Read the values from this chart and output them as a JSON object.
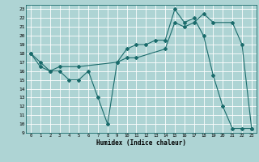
{
  "xlabel": "Humidex (Indice chaleur)",
  "background_color": "#aed4d4",
  "grid_color": "#ffffff",
  "line_color": "#1a6b6b",
  "xlim": [
    -0.5,
    23.5
  ],
  "ylim": [
    9,
    23.5
  ],
  "xticks": [
    0,
    1,
    2,
    3,
    4,
    5,
    6,
    7,
    8,
    9,
    10,
    11,
    12,
    13,
    14,
    15,
    16,
    17,
    18,
    19,
    20,
    21,
    22,
    23
  ],
  "yticks": [
    9,
    10,
    11,
    12,
    13,
    14,
    15,
    16,
    17,
    18,
    19,
    20,
    21,
    22,
    23
  ],
  "line1_x": [
    0,
    1,
    2,
    3,
    4,
    5,
    6,
    7,
    8,
    9,
    10,
    11,
    12,
    13,
    14,
    15,
    16,
    17,
    18,
    19,
    20,
    21,
    22,
    23
  ],
  "line1_y": [
    18,
    17,
    16,
    16,
    15,
    15,
    16,
    13,
    10,
    17,
    18.5,
    19,
    19,
    19.5,
    19.5,
    23,
    21.5,
    22,
    20,
    15.5,
    12,
    9.5,
    9.5,
    9.5
  ],
  "line2_x": [
    0,
    1,
    2,
    3,
    5,
    9,
    10,
    11,
    14,
    15,
    16,
    17,
    18,
    19,
    21,
    22,
    23
  ],
  "line2_y": [
    18,
    16.5,
    16,
    16.5,
    16.5,
    17,
    17.5,
    17.5,
    18.5,
    21.5,
    21,
    21.5,
    22.5,
    21.5,
    21.5,
    19,
    9.5
  ]
}
